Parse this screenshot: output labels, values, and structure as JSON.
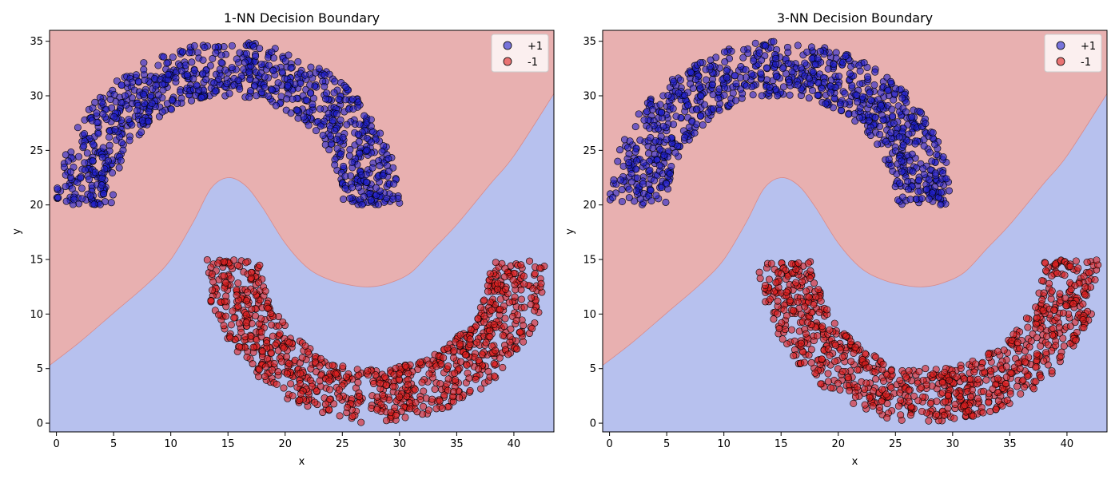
{
  "chart_data": [
    {
      "type": "scatter",
      "title": "1-NN Decision Boundary",
      "xlabel": "x",
      "ylabel": "y",
      "xlim": [
        -0.6,
        43.5
      ],
      "ylim": [
        -0.8,
        36
      ],
      "xticks": [
        "0",
        "5",
        "10",
        "15",
        "20",
        "25",
        "30",
        "35",
        "40"
      ],
      "yticks": [
        "0",
        "5",
        "10",
        "15",
        "20",
        "25",
        "30",
        "35"
      ],
      "legend_position": "top-right",
      "regions": [
        {
          "label": "+1",
          "color": "#e8b0b0",
          "description": "upper region containing the +1 arc"
        },
        {
          "label": "-1",
          "color": "#b7c1ee",
          "description": "lower region containing the -1 arc"
        }
      ],
      "boundary": {
        "x": [
          -0.6,
          2,
          5,
          8,
          10,
          12,
          13.5,
          15,
          16.5,
          18,
          20,
          22,
          24,
          26,
          27.5,
          29,
          31,
          33,
          35,
          38,
          40,
          43.5
        ],
        "y": [
          5.3,
          7.4,
          10.1,
          12.8,
          15.0,
          18.5,
          21.5,
          22.5,
          21.8,
          19.8,
          16.5,
          14.2,
          13.1,
          12.6,
          12.5,
          12.8,
          13.8,
          16.0,
          18.2,
          22.0,
          24.5,
          30.2
        ]
      },
      "series": [
        {
          "name": "+1",
          "color": "#1f1fcc",
          "description": "upper half-moon arc, center (15,20), radius ~10-15"
        },
        {
          "name": "-1",
          "color": "#dd1f1f",
          "description": "lower half-moon arc, center (28,15), radius ~10-15"
        }
      ],
      "k": 1
    },
    {
      "type": "scatter",
      "title": "3-NN Decision Boundary",
      "xlabel": "x",
      "ylabel": "y",
      "xlim": [
        -0.6,
        43.5
      ],
      "ylim": [
        -0.8,
        36
      ],
      "xticks": [
        "0",
        "5",
        "10",
        "15",
        "20",
        "25",
        "30",
        "35",
        "40"
      ],
      "yticks": [
        "0",
        "5",
        "10",
        "15",
        "20",
        "25",
        "30",
        "35"
      ],
      "legend_position": "top-right",
      "regions": [
        {
          "label": "+1",
          "color": "#e8b0b0",
          "description": "upper region containing the +1 arc"
        },
        {
          "label": "-1",
          "color": "#b7c1ee",
          "description": "lower region containing the -1 arc"
        }
      ],
      "boundary": {
        "x": [
          -0.6,
          2,
          5,
          8,
          10,
          12,
          13.5,
          15,
          16.5,
          18,
          20,
          22,
          24,
          26,
          27.5,
          29,
          31,
          33,
          35,
          38,
          40,
          43.5
        ],
        "y": [
          5.3,
          7.4,
          10.1,
          12.8,
          15.0,
          18.5,
          21.5,
          22.5,
          21.8,
          19.8,
          16.5,
          14.2,
          13.1,
          12.6,
          12.5,
          12.8,
          13.8,
          16.0,
          18.2,
          22.0,
          24.5,
          30.2
        ]
      },
      "series": [
        {
          "name": "+1",
          "color": "#1f1fcc",
          "description": "upper half-moon arc, center (15,20), radius ~10-15"
        },
        {
          "name": "-1",
          "color": "#dd1f1f",
          "description": "lower half-moon arc, center (28,15), radius ~10-15"
        }
      ],
      "k": 3
    }
  ]
}
